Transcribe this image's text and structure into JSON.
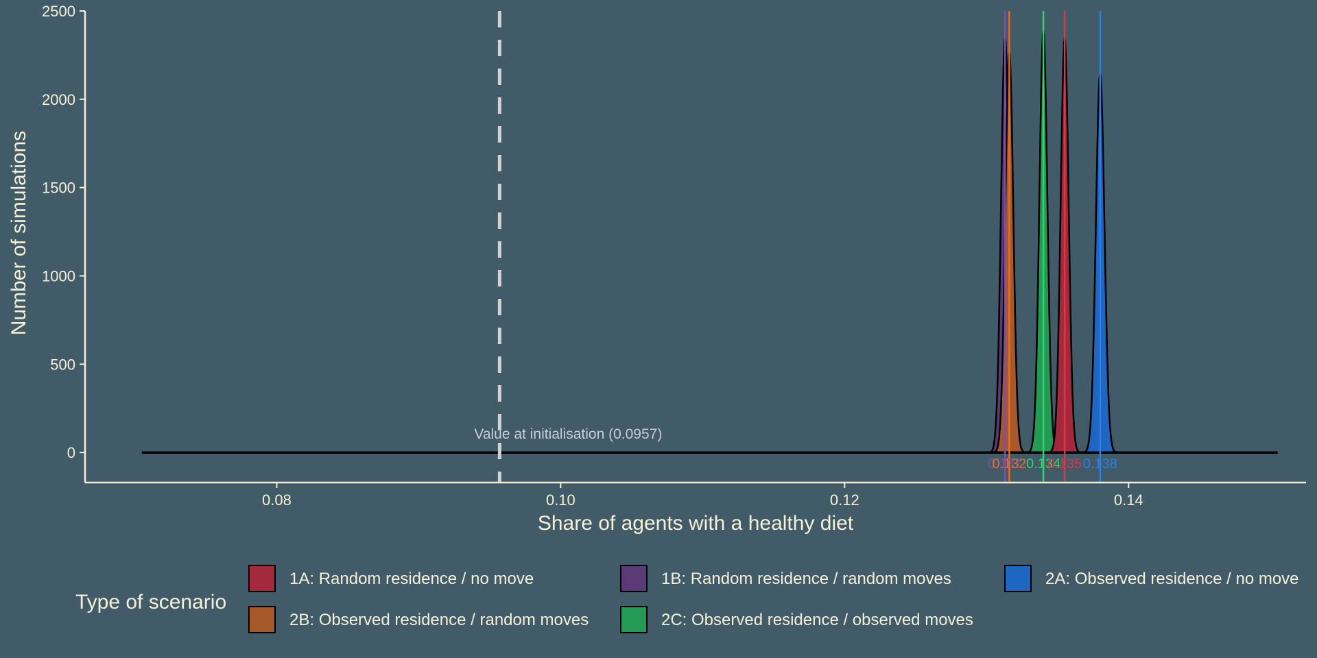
{
  "chart_data": {
    "type": "area",
    "xlabel": "Share of agents with a healthy diet",
    "ylabel": "Number of simulations",
    "xlim": [
      0.0665,
      0.1525
    ],
    "ylim": [
      -170,
      2500
    ],
    "x_ticks": [
      {
        "value": 0.08,
        "label": "0.08"
      },
      {
        "value": 0.1,
        "label": "0.10"
      },
      {
        "value": 0.12,
        "label": "0.12"
      },
      {
        "value": 0.14,
        "label": "0.14"
      }
    ],
    "y_ticks": [
      {
        "value": 0,
        "label": "0"
      },
      {
        "value": 500,
        "label": "500"
      },
      {
        "value": 1000,
        "label": "1000"
      },
      {
        "value": 1500,
        "label": "1500"
      },
      {
        "value": 2000,
        "label": "2000"
      },
      {
        "value": 2500,
        "label": "2500"
      }
    ],
    "baseline_range": [
      0.0705,
      0.1505
    ],
    "grid": false,
    "legend_position": "bottom",
    "legend_title": "Type of scenario",
    "reference_line": {
      "x": 0.0957,
      "label": "Value at initialisation (0.0957)"
    },
    "series": [
      {
        "name": "1B: Random residence / random moves",
        "color": "#5b3a78",
        "mean": 0.1313,
        "peak": 2350,
        "sd": 0.00028,
        "mean_label": "0.131"
      },
      {
        "name": "2B: Observed residence / random moves",
        "color": "#a8592b",
        "mean": 0.1316,
        "peak": 2270,
        "sd": 0.00028,
        "mean_label": "0.132"
      },
      {
        "name": "2C: Observed residence / observed moves",
        "color": "#239b57",
        "mean": 0.134,
        "peak": 2390,
        "sd": 0.00028,
        "mean_label": "0.134"
      },
      {
        "name": "1A: Random residence / no move",
        "color": "#a5293c",
        "mean": 0.1355,
        "peak": 2350,
        "sd": 0.00028,
        "mean_label": "0.135"
      },
      {
        "name": "2A: Observed residence / no move",
        "color": "#1f66c2",
        "mean": 0.138,
        "peak": 2150,
        "sd": 0.0003,
        "mean_label": "0.138"
      }
    ],
    "mean_line_colors": {
      "1B: Random residence / random moves": "#7e4fa8",
      "2B: Observed residence / random moves": "#e0712a",
      "2C: Observed residence / observed moves": "#35d170",
      "1A: Random residence / no move": "#e03448",
      "2A: Observed residence / no move": "#2d7ee6"
    }
  },
  "legend_items": [
    {
      "label": "1A: Random residence / no move",
      "color": "#a5293c"
    },
    {
      "label": "1B: Random residence / random moves",
      "color": "#5b3a78"
    },
    {
      "label": "2A: Observed residence / no move",
      "color": "#1f66c2"
    },
    {
      "label": "2B: Observed residence / random moves",
      "color": "#a8592b"
    },
    {
      "label": "2C: Observed residence / observed moves",
      "color": "#239b57"
    }
  ]
}
